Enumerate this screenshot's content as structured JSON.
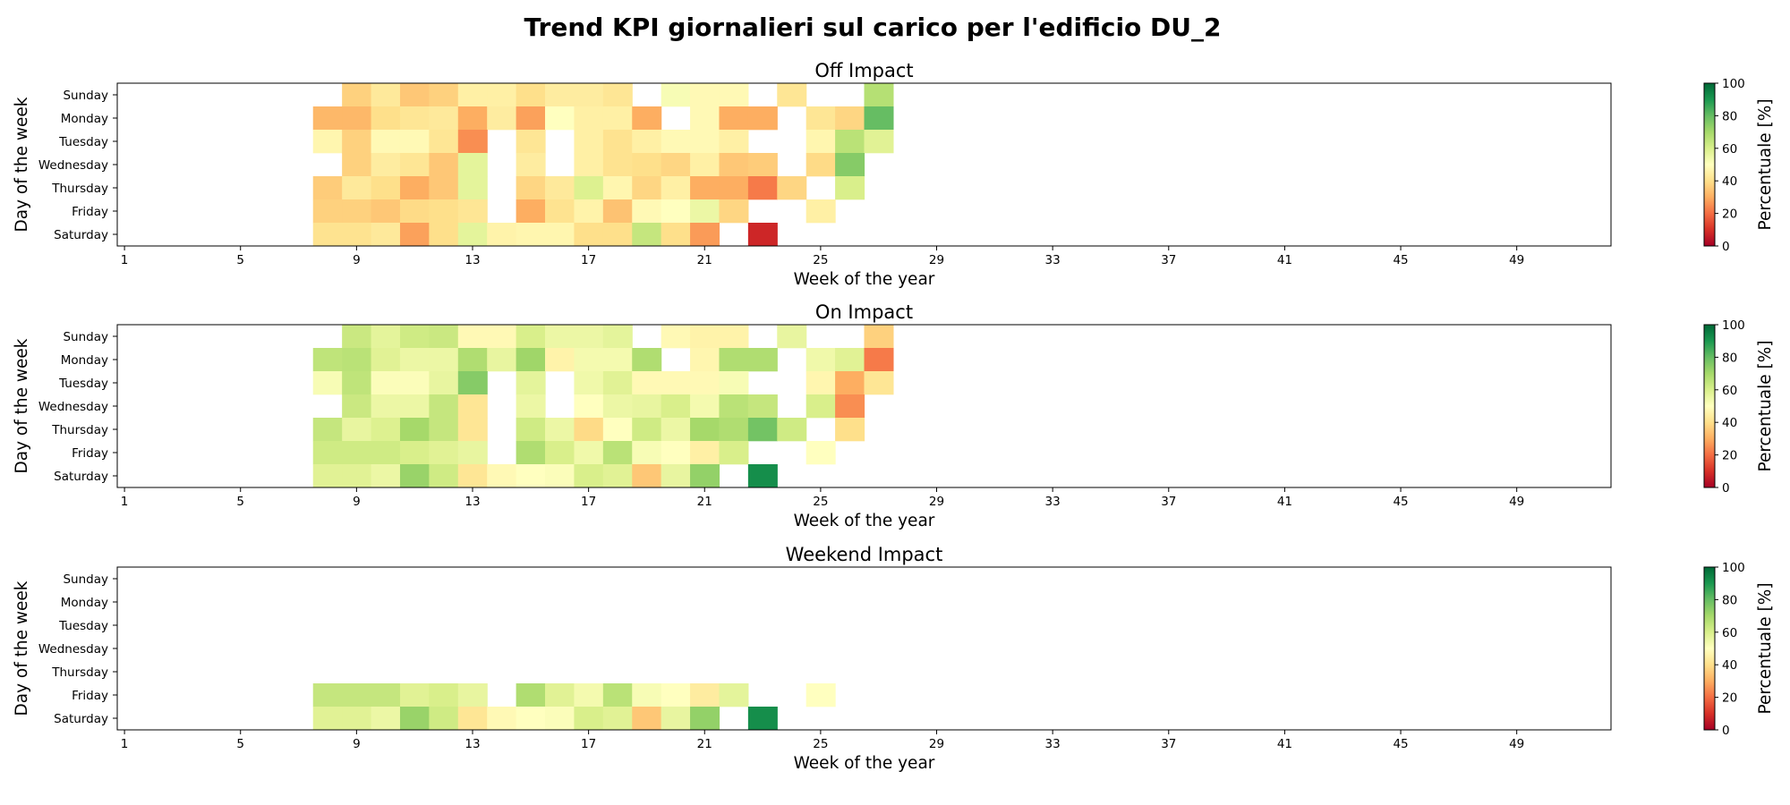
{
  "figure": {
    "title": "Trend KPI giornalieri sul carico per l'edificio DU_2"
  },
  "chart_data": [
    {
      "type": "heatmap",
      "title": "Off Impact",
      "xlabel": "Week of the year",
      "ylabel": "Day of the week",
      "xticks": [
        1,
        5,
        9,
        13,
        17,
        21,
        25,
        29,
        33,
        37,
        41,
        45,
        49
      ],
      "xlim": [
        1,
        52
      ],
      "days": [
        "Sunday",
        "Monday",
        "Tuesday",
        "Wednesday",
        "Thursday",
        "Friday",
        "Saturday"
      ],
      "colorbar": {
        "label": "Percentuale [%]",
        "ticks": [
          0,
          20,
          40,
          60,
          80,
          100
        ],
        "range": [
          0,
          100
        ],
        "colormap": "RdYlGn"
      },
      "week_start": 8,
      "values": [
        [
          null,
          37,
          43,
          35,
          37,
          45,
          45,
          40,
          44,
          44,
          42,
          null,
          52,
          48,
          48,
          null,
          42,
          null,
          null,
          67
        ],
        [
          32,
          32,
          40,
          42,
          43,
          30,
          44,
          28,
          50,
          45,
          45,
          30,
          null,
          48,
          30,
          30,
          null,
          42,
          38,
          80
        ],
        [
          47,
          37,
          48,
          48,
          42,
          25,
          null,
          42,
          null,
          45,
          41,
          45,
          48,
          48,
          45,
          null,
          null,
          47,
          66,
          58
        ],
        [
          null,
          37,
          44,
          42,
          35,
          57,
          null,
          44,
          null,
          45,
          41,
          40,
          38,
          45,
          35,
          36,
          null,
          39,
          75,
          null
        ],
        [
          36,
          43,
          40,
          30,
          35,
          57,
          null,
          38,
          43,
          59,
          47,
          38,
          45,
          30,
          30,
          22,
          38,
          null,
          60,
          null
        ],
        [
          37,
          37,
          35,
          39,
          40,
          42,
          null,
          30,
          41,
          46,
          34,
          48,
          50,
          55,
          38,
          null,
          null,
          45,
          null,
          null
        ],
        [
          41,
          41,
          43,
          28,
          40,
          57,
          46,
          47,
          47,
          40,
          40,
          64,
          40,
          27,
          null,
          8,
          null,
          null,
          null,
          null
        ]
      ]
    },
    {
      "type": "heatmap",
      "title": "On Impact",
      "xlabel": "Week of the year",
      "ylabel": "Day of the week",
      "xticks": [
        1,
        5,
        9,
        13,
        17,
        21,
        25,
        29,
        33,
        37,
        41,
        45,
        49
      ],
      "xlim": [
        1,
        52
      ],
      "days": [
        "Sunday",
        "Monday",
        "Tuesday",
        "Wednesday",
        "Thursday",
        "Friday",
        "Saturday"
      ],
      "colorbar": {
        "label": "Percentuale [%]",
        "ticks": [
          0,
          20,
          40,
          60,
          80,
          100
        ],
        "range": [
          0,
          100
        ],
        "colormap": "RdYlGn"
      },
      "week_start": 8,
      "values": [
        [
          null,
          63,
          57,
          62,
          63,
          48,
          48,
          60,
          55,
          55,
          57,
          null,
          48,
          46,
          46,
          null,
          56,
          null,
          null,
          37
        ],
        [
          65,
          66,
          58,
          55,
          55,
          68,
          56,
          71,
          46,
          53,
          53,
          68,
          null,
          47,
          68,
          68,
          null,
          54,
          58,
          22
        ],
        [
          52,
          65,
          51,
          51,
          56,
          75,
          null,
          57,
          null,
          54,
          58,
          48,
          48,
          48,
          52,
          null,
          null,
          47,
          30,
          42
        ],
        [
          null,
          63,
          55,
          55,
          64,
          42,
          null,
          55,
          null,
          50,
          55,
          56,
          60,
          53,
          66,
          64,
          null,
          60,
          25,
          null
        ],
        [
          64,
          56,
          59,
          70,
          64,
          42,
          null,
          62,
          55,
          39,
          50,
          62,
          55,
          70,
          68,
          78,
          62,
          null,
          40,
          null
        ],
        [
          62,
          62,
          62,
          60,
          58,
          56,
          null,
          68,
          60,
          54,
          66,
          52,
          50,
          45,
          60,
          null,
          null,
          50,
          null,
          null
        ],
        [
          58,
          58,
          55,
          72,
          62,
          42,
          48,
          50,
          51,
          60,
          58,
          35,
          56,
          73,
          null,
          92,
          null,
          null,
          null,
          null
        ]
      ]
    },
    {
      "type": "heatmap",
      "title": "Weekend Impact",
      "xlabel": "Week of the year",
      "ylabel": "Day of the week",
      "xticks": [
        1,
        5,
        9,
        13,
        17,
        21,
        25,
        29,
        33,
        37,
        41,
        45,
        49
      ],
      "xlim": [
        1,
        52
      ],
      "days": [
        "Sunday",
        "Monday",
        "Tuesday",
        "Wednesday",
        "Thursday",
        "Friday",
        "Saturday"
      ],
      "colorbar": {
        "label": "Percentuale [%]",
        "ticks": [
          0,
          20,
          40,
          60,
          80,
          100
        ],
        "range": [
          0,
          100
        ],
        "colormap": "RdYlGn"
      },
      "week_start": 8,
      "values": [
        [
          null,
          null,
          null,
          null,
          null,
          null,
          null,
          null,
          null,
          null,
          null,
          null,
          null,
          null,
          null,
          null,
          null,
          null,
          null,
          null
        ],
        [
          null,
          null,
          null,
          null,
          null,
          null,
          null,
          null,
          null,
          null,
          null,
          null,
          null,
          null,
          null,
          null,
          null,
          null,
          null,
          null
        ],
        [
          null,
          null,
          null,
          null,
          null,
          null,
          null,
          null,
          null,
          null,
          null,
          null,
          null,
          null,
          null,
          null,
          null,
          null,
          null,
          null
        ],
        [
          null,
          null,
          null,
          null,
          null,
          null,
          null,
          null,
          null,
          null,
          null,
          null,
          null,
          null,
          null,
          null,
          null,
          null,
          null,
          null
        ],
        [
          null,
          null,
          null,
          null,
          null,
          null,
          null,
          null,
          null,
          null,
          null,
          null,
          null,
          null,
          null,
          null,
          null,
          null,
          null,
          null
        ],
        [
          64,
          64,
          64,
          58,
          60,
          56,
          null,
          68,
          58,
          53,
          66,
          52,
          50,
          44,
          57,
          null,
          null,
          50,
          null,
          null
        ],
        [
          58,
          58,
          55,
          72,
          62,
          42,
          48,
          50,
          51,
          60,
          58,
          35,
          56,
          73,
          null,
          92,
          null,
          null,
          null,
          null
        ]
      ]
    }
  ]
}
